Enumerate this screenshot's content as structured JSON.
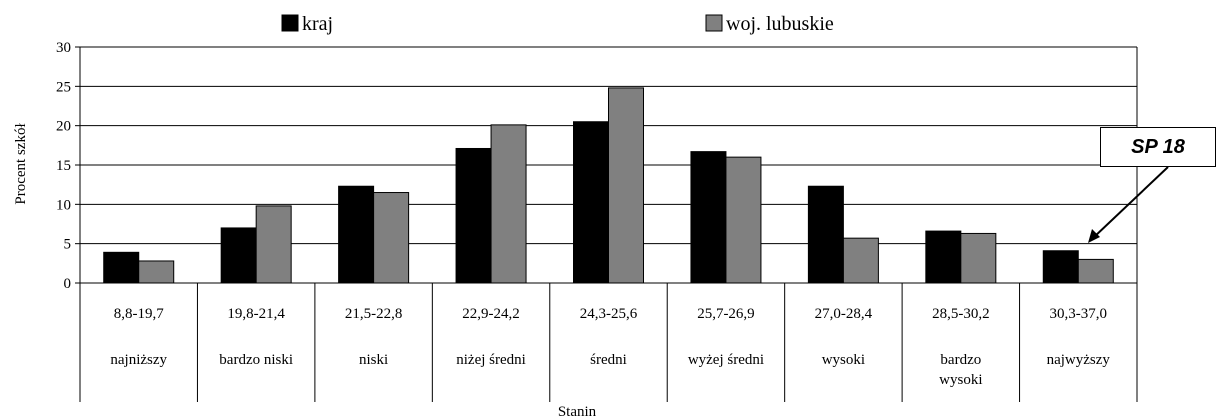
{
  "chart_data": {
    "type": "bar",
    "ylabel": "Procent szkół",
    "xlabel": "Stanin",
    "ylim": [
      0,
      30
    ],
    "yticks": [
      "0",
      "5",
      "10",
      "15",
      "20",
      "25",
      "30"
    ],
    "grid": true,
    "legend_position": "top",
    "categories": [
      {
        "range": "8,8-19,7",
        "name": [
          "najniższy"
        ]
      },
      {
        "range": "19,8-21,4",
        "name": [
          "bardzo niski"
        ]
      },
      {
        "range": "21,5-22,8",
        "name": [
          "niski"
        ]
      },
      {
        "range": "22,9-24,2",
        "name": [
          "niżej średni"
        ]
      },
      {
        "range": "24,3-25,6",
        "name": [
          "średni"
        ]
      },
      {
        "range": "25,7-26,9",
        "name": [
          "wyżej średni"
        ]
      },
      {
        "range": "27,0-28,4",
        "name": [
          "wysoki"
        ]
      },
      {
        "range": "28,5-30,2",
        "name": [
          "bardzo",
          "wysoki"
        ]
      },
      {
        "range": "30,3-37,0",
        "name": [
          "najwyższy"
        ]
      }
    ],
    "series": [
      {
        "name": "kraj",
        "color": "#000000",
        "values": [
          3.9,
          7.0,
          12.3,
          17.1,
          20.5,
          16.7,
          12.3,
          6.6,
          4.1
        ]
      },
      {
        "name": "woj. lubuskie",
        "color": "#808080",
        "values": [
          2.8,
          9.8,
          11.5,
          20.1,
          24.8,
          16.0,
          5.7,
          6.3,
          3.0
        ]
      }
    ],
    "annotation": {
      "text": "SP 18",
      "points_to_category": 8
    }
  }
}
